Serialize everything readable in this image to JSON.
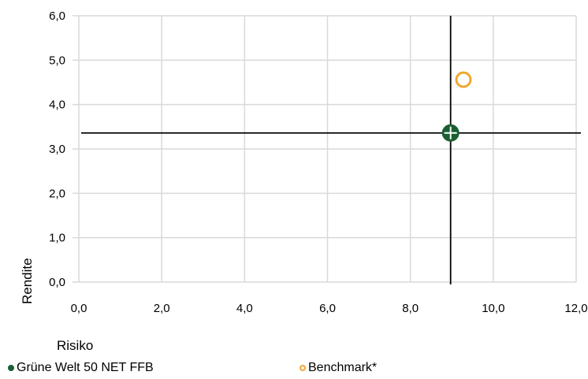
{
  "chart_data": {
    "type": "scatter",
    "xlabel": "Risiko",
    "ylabel": "Rendite",
    "xlim": [
      0,
      12
    ],
    "ylim": [
      0,
      6
    ],
    "x_ticks": [
      "0,0",
      "2,0",
      "4,0",
      "6,0",
      "8,0",
      "10,0",
      "12,0"
    ],
    "y_ticks": [
      "0,0",
      "1,0",
      "2,0",
      "3,0",
      "4,0",
      "5,0",
      "6,0"
    ],
    "grid": true,
    "legend_position": "bottom",
    "series": [
      {
        "name": "Grüne Welt 50 NET FFB",
        "color": "#1b5e30",
        "marker": "filled-circle-cross",
        "points": [
          {
            "x": 8.97,
            "y": 3.36
          }
        ]
      },
      {
        "name": "Benchmark*",
        "color": "#f0a830",
        "marker": "hollow-circle",
        "points": [
          {
            "x": 9.28,
            "y": 4.56
          }
        ]
      }
    ],
    "crosshair": {
      "x": 8.97,
      "y": 3.36,
      "color": "#000000"
    }
  }
}
